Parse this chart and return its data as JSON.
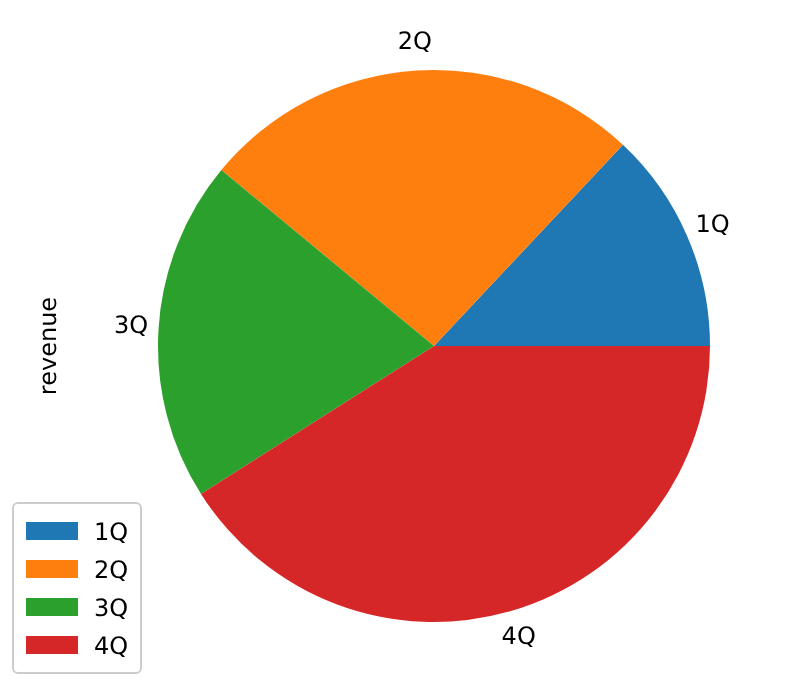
{
  "chart_data": {
    "type": "pie",
    "ylabel": "revenue",
    "categories": [
      "1Q",
      "2Q",
      "3Q",
      "4Q"
    ],
    "values": [
      13,
      26,
      20,
      41
    ],
    "colors": [
      "#1f77b4",
      "#ff7f0e",
      "#2ca02c",
      "#d62728"
    ],
    "legend": "bottom left"
  }
}
